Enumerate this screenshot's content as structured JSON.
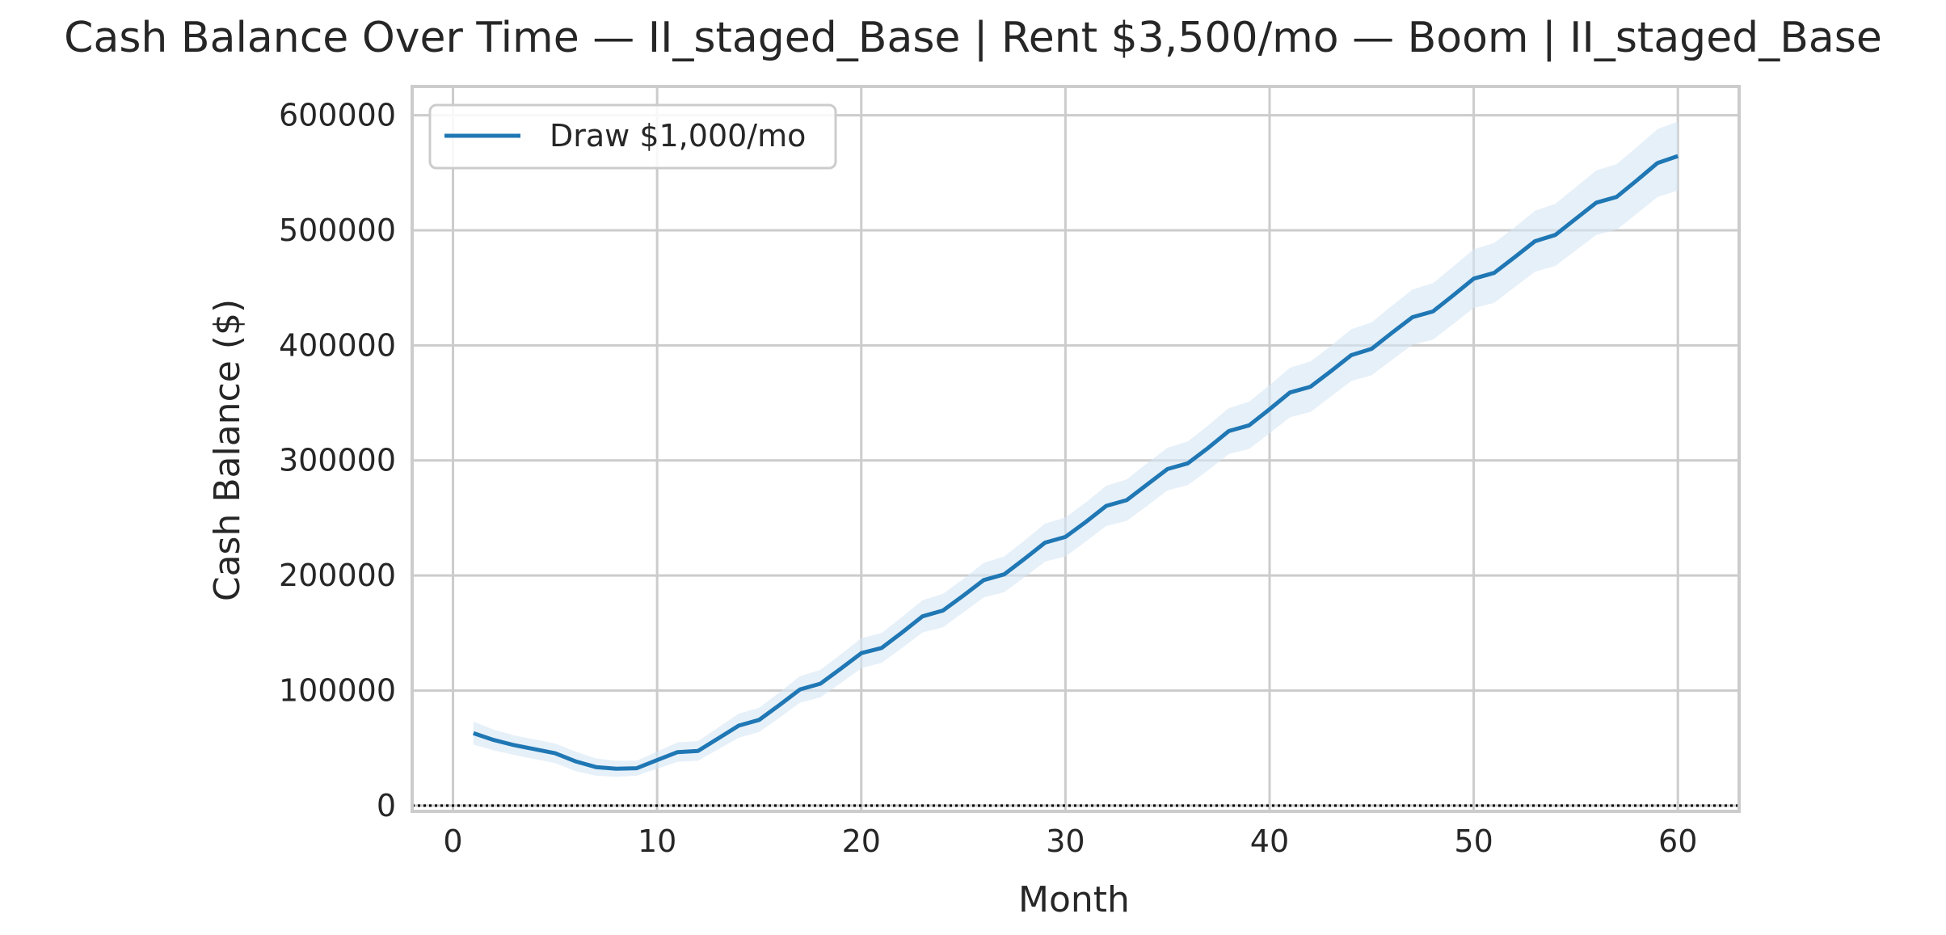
{
  "chart_data": {
    "type": "line",
    "title": "Cash Balance Over Time — II_staged_Base | Rent $3,500/mo — Boom | II_staged_Base",
    "xlabel": "Month",
    "ylabel": "Cash Balance ($)",
    "xlim": [
      -2,
      63
    ],
    "ylim": [
      -5000,
      625000
    ],
    "xticks": [
      0,
      10,
      20,
      30,
      40,
      50,
      60
    ],
    "yticks": [
      0,
      100000,
      200000,
      300000,
      400000,
      500000,
      600000
    ],
    "xtick_labels": [
      "0",
      "10",
      "20",
      "30",
      "40",
      "50",
      "60"
    ],
    "ytick_labels": [
      "0",
      "100000",
      "200000",
      "300000",
      "400000",
      "500000",
      "600000"
    ],
    "grid": true,
    "legend": "top-left",
    "reference_line": {
      "y": 0,
      "style": "dotted",
      "color": "#000000"
    },
    "series": [
      {
        "name": "Draw $1,000/mo",
        "color": "#1f77b4",
        "band_color": "#d6e6f5",
        "x": [
          1,
          2,
          3,
          4,
          5,
          6,
          7,
          8,
          9,
          10,
          11,
          12,
          13,
          14,
          15,
          16,
          17,
          18,
          19,
          20,
          21,
          22,
          23,
          24,
          25,
          26,
          27,
          28,
          29,
          30,
          31,
          32,
          33,
          34,
          35,
          36,
          37,
          38,
          39,
          40,
          41,
          42,
          43,
          44,
          45,
          46,
          47,
          48,
          49,
          50,
          51,
          52,
          53,
          54,
          55,
          56,
          57,
          58,
          59,
          60
        ],
        "values": [
          63000,
          57000,
          52500,
          49000,
          45500,
          38500,
          33500,
          32000,
          32500,
          39500,
          46500,
          47500,
          58500,
          69500,
          74500,
          87500,
          101000,
          106000,
          119000,
          132500,
          137000,
          150500,
          164500,
          169500,
          182500,
          196000,
          201000,
          214500,
          228500,
          233500,
          246500,
          260500,
          265500,
          279000,
          292500,
          297500,
          311000,
          325500,
          330500,
          344500,
          359000,
          364000,
          377500,
          391500,
          397000,
          411000,
          424500,
          429500,
          443500,
          458000,
          463000,
          476500,
          490500,
          496000,
          510000,
          524000,
          529000,
          543500,
          558500,
          564500
        ],
        "lower": [
          53000,
          48000,
          44000,
          40500,
          37000,
          30000,
          26000,
          25000,
          26000,
          32000,
          38000,
          39000,
          49000,
          59000,
          64000,
          76500,
          89500,
          94000,
          106500,
          119500,
          124000,
          137000,
          150500,
          155000,
          168000,
          181000,
          185500,
          198500,
          212000,
          216500,
          229500,
          243000,
          247500,
          260500,
          274000,
          278500,
          291500,
          305500,
          310000,
          323500,
          337500,
          342000,
          355500,
          369000,
          374000,
          387500,
          400500,
          405000,
          418500,
          432500,
          437000,
          450500,
          464000,
          469000,
          482500,
          496000,
          500500,
          514500,
          529000,
          534500
        ],
        "upper": [
          73000,
          66000,
          61000,
          57500,
          54000,
          47000,
          41000,
          39000,
          39000,
          47000,
          55000,
          56000,
          68000,
          80000,
          85000,
          98500,
          112500,
          118000,
          131500,
          145500,
          150000,
          164000,
          178500,
          184000,
          197000,
          211000,
          216500,
          230500,
          245000,
          250500,
          263500,
          278000,
          283500,
          297500,
          311000,
          316500,
          330500,
          345500,
          351000,
          365500,
          380500,
          386000,
          399500,
          414000,
          420000,
          434500,
          448500,
          454000,
          468500,
          483500,
          489000,
          502500,
          517000,
          523000,
          537500,
          552000,
          557500,
          572500,
          588000,
          594500
        ]
      }
    ]
  }
}
